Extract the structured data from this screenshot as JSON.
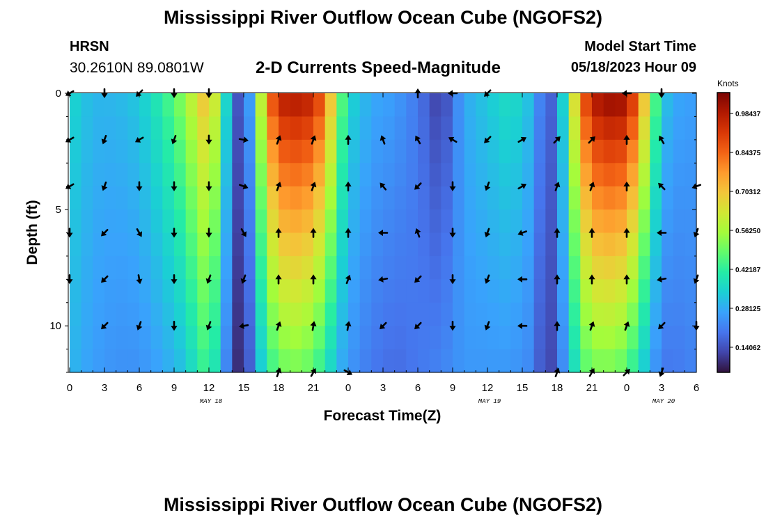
{
  "header": {
    "title": "Mississippi River Outflow Ocean Cube (NGOFS2)",
    "station": "HRSN",
    "coords": "30.2610N  89.0801W",
    "subtitle": "2-D Currents Speed-Magnitude",
    "model_start_label": "Model Start Time",
    "model_start_value": "05/18/2023 Hour 09"
  },
  "footer": {
    "title": "Mississippi River Outflow Ocean Cube (NGOFS2)"
  },
  "chart_data": {
    "type": "heatmap",
    "title": "2-D Currents Speed-Magnitude",
    "xlabel": "Forecast Time(Z)",
    "ylabel": "Depth (ft)",
    "x_ticks": [
      "0",
      "3",
      "6",
      "9",
      "12",
      "15",
      "18",
      "21",
      "0",
      "3",
      "6",
      "9",
      "12",
      "15",
      "18",
      "21",
      "0",
      "3",
      "6"
    ],
    "x_range_hours": [
      0,
      54
    ],
    "y_ticks": [
      "0",
      "5",
      "10"
    ],
    "y_range_ft": [
      0,
      12
    ],
    "day_labels": [
      {
        "text": "MAY 18",
        "hour": 12
      },
      {
        "text": "MAY 19",
        "hour": 36
      },
      {
        "text": "MAY 20",
        "hour": 51
      }
    ],
    "colorbar": {
      "units": "Knots",
      "ticks": [
        "0.98437",
        "0.84375",
        "0.70312",
        "0.56250",
        "0.42187",
        "0.28125",
        "0.14062"
      ],
      "tick_values": [
        0.98437,
        0.84375,
        0.70312,
        0.5625,
        0.42187,
        0.28125,
        0.14062
      ],
      "range": [
        0.05,
        1.06
      ],
      "colormap": [
        "#30123b",
        "#4145ab",
        "#4675ed",
        "#39a2fc",
        "#1bcfd4",
        "#24eca6",
        "#61fc6c",
        "#a4fc3b",
        "#d1e834",
        "#f3c63a",
        "#fe9b2d",
        "#f36315",
        "#d93806",
        "#b11901",
        "#7a0403"
      ]
    },
    "speed_profile": {
      "hours": [
        0,
        2,
        4,
        6,
        8,
        10,
        11,
        12,
        13,
        14,
        15,
        16,
        17,
        18,
        19,
        20,
        21,
        22,
        23,
        24,
        26,
        28,
        30,
        32,
        34,
        36,
        38,
        40,
        41,
        42,
        43,
        44,
        45,
        46,
        47,
        48,
        49,
        50,
        51,
        52,
        54
      ],
      "surface_knots": [
        0.36,
        0.3,
        0.3,
        0.33,
        0.42,
        0.55,
        0.66,
        0.74,
        0.52,
        0.2,
        0.1,
        0.42,
        0.8,
        0.98,
        1.0,
        1.0,
        0.97,
        0.85,
        0.58,
        0.36,
        0.28,
        0.26,
        0.2,
        0.1,
        0.28,
        0.33,
        0.38,
        0.3,
        0.14,
        0.2,
        0.5,
        0.82,
        1.0,
        1.03,
        1.05,
        1.02,
        0.85,
        0.58,
        0.34,
        0.28,
        0.26
      ],
      "bottom_knots": [
        0.3,
        0.26,
        0.24,
        0.24,
        0.27,
        0.32,
        0.4,
        0.45,
        0.32,
        0.12,
        0.06,
        0.26,
        0.4,
        0.48,
        0.5,
        0.5,
        0.46,
        0.4,
        0.3,
        0.25,
        0.2,
        0.18,
        0.2,
        0.22,
        0.25,
        0.25,
        0.25,
        0.22,
        0.1,
        0.16,
        0.3,
        0.44,
        0.5,
        0.5,
        0.5,
        0.46,
        0.38,
        0.28,
        0.2,
        0.2,
        0.22
      ]
    },
    "vectors": {
      "hours": [
        0,
        3,
        6,
        9,
        12,
        15,
        18,
        21,
        24,
        27,
        30,
        33,
        36,
        39,
        42,
        45,
        48,
        51,
        54
      ],
      "depths_ft": [
        0,
        2,
        4,
        6,
        8,
        10,
        12
      ],
      "directions_deg": [
        [
          210,
          270,
          225,
          270,
          270,
          null,
          null,
          null,
          null,
          null,
          90,
          180,
          225,
          null,
          null,
          null,
          180,
          270,
          null
        ],
        [
          210,
          250,
          210,
          250,
          270,
          350,
          70,
          70,
          90,
          110,
          120,
          150,
          225,
          30,
          45,
          45,
          90,
          120,
          null
        ],
        [
          210,
          250,
          270,
          270,
          270,
          340,
          70,
          70,
          90,
          130,
          225,
          270,
          250,
          30,
          70,
          70,
          90,
          135,
          200
        ],
        [
          270,
          225,
          300,
          270,
          270,
          300,
          90,
          90,
          90,
          180,
          110,
          270,
          250,
          200,
          90,
          90,
          90,
          180,
          250
        ],
        [
          270,
          225,
          280,
          270,
          250,
          250,
          90,
          90,
          70,
          190,
          225,
          270,
          250,
          180,
          90,
          90,
          90,
          190,
          250
        ],
        [
          null,
          225,
          250,
          270,
          250,
          190,
          70,
          80,
          80,
          225,
          225,
          270,
          250,
          180,
          90,
          70,
          70,
          225,
          270
        ],
        [
          null,
          null,
          null,
          null,
          null,
          null,
          70,
          60,
          330,
          null,
          null,
          null,
          null,
          null,
          70,
          60,
          45,
          250,
          null
        ]
      ]
    }
  }
}
